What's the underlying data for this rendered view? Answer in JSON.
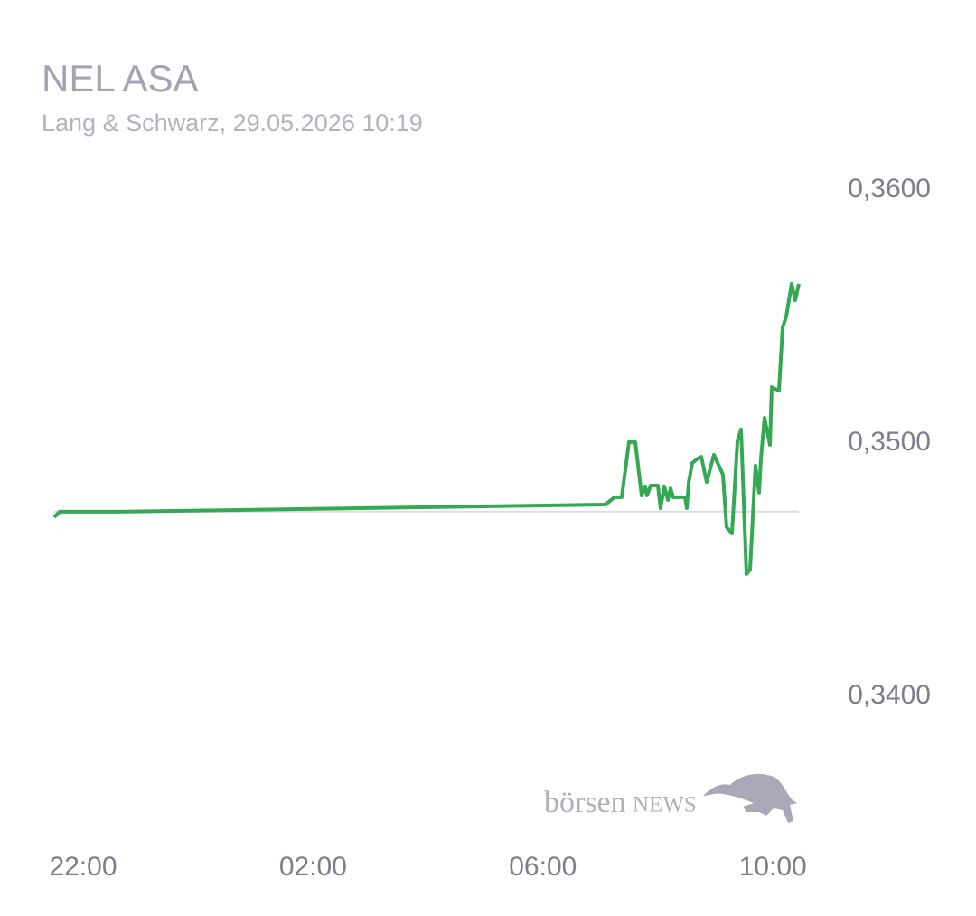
{
  "chart_data": {
    "type": "line",
    "title": "NEL ASA",
    "subtitle": "Lang & Schwarz, 29.05.2026 10:19",
    "watermark": {
      "lower": "börsen",
      "upper": "NEWS"
    },
    "x": [
      21.497,
      21.591,
      22.597,
      31.088,
      31.245,
      31.371,
      31.497,
      31.607,
      31.717,
      31.78,
      31.811,
      31.874,
      32.0,
      32.047,
      32.11,
      32.173,
      32.22,
      32.267,
      32.472,
      32.503,
      32.535,
      32.597,
      32.692,
      32.755,
      32.849,
      32.975,
      33.132,
      33.195,
      33.289,
      33.384,
      33.447,
      33.541,
      33.604,
      33.698,
      33.761,
      33.792,
      33.855,
      33.95,
      33.981,
      34.107,
      34.17,
      34.233,
      34.327,
      34.39,
      34.453
    ],
    "series": [
      {
        "color": "#34a853",
        "values": [
          0.34707,
          0.34729,
          0.34729,
          0.34757,
          0.34786,
          0.34786,
          0.35004,
          0.35004,
          0.34793,
          0.34829,
          0.34793,
          0.34832,
          0.34832,
          0.34743,
          0.34829,
          0.34775,
          0.34821,
          0.34786,
          0.34786,
          0.34743,
          0.34843,
          0.34921,
          0.34939,
          0.34946,
          0.34846,
          0.34954,
          0.34875,
          0.34668,
          0.34643,
          0.35007,
          0.35054,
          0.34482,
          0.345,
          0.34911,
          0.34804,
          0.34936,
          0.351,
          0.34993,
          0.35221,
          0.35207,
          0.35457,
          0.355,
          0.35629,
          0.35564,
          0.35629
        ]
      }
    ],
    "reference_line": 0.34729,
    "xlim": [
      21.497,
      34.453
    ],
    "ylim": [
      0.34,
      0.36
    ],
    "xticks": [
      {
        "value": 22,
        "label": "22:00"
      },
      {
        "value": 26,
        "label": "02:00"
      },
      {
        "value": 30,
        "label": "06:00"
      },
      {
        "value": 34,
        "label": "10:00"
      }
    ],
    "yticks": [
      {
        "value": 0.34,
        "label": "0,3400"
      },
      {
        "value": 0.35,
        "label": "0,3500"
      },
      {
        "value": 0.36,
        "label": "0,3600"
      }
    ]
  }
}
